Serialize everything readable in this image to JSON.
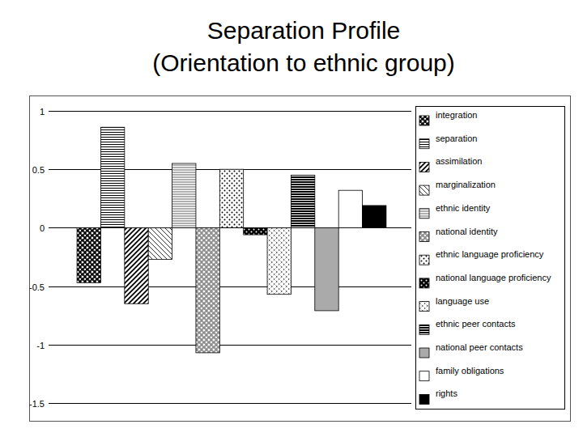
{
  "chart_data": {
    "type": "bar",
    "title": "Separation Profile",
    "subtitle": "(Orientation to ethnic group)",
    "categories": [
      null
    ],
    "series": [
      {
        "name": "integration",
        "color": "#000000",
        "values": [
          -0.47
        ]
      },
      {
        "name": "separation",
        "color": "#ffffff",
        "values": [
          0.86
        ]
      },
      {
        "name": "assimilation",
        "color": "#ffffff",
        "values": [
          -0.65
        ]
      },
      {
        "name": "marginalization",
        "color": "#ffffff",
        "values": [
          -0.27
        ]
      },
      {
        "name": "ethnic identity",
        "color": "#b0b0b0",
        "values": [
          0.55
        ]
      },
      {
        "name": "national identity",
        "color": "#8c8c8c",
        "values": [
          -1.07
        ]
      },
      {
        "name": "ethnic language proficiency",
        "color": "#ffffff",
        "values": [
          0.5
        ]
      },
      {
        "name": "national language proficiency",
        "color": "#000000",
        "values": [
          -0.06
        ]
      },
      {
        "name": "language use",
        "color": "#ffffff",
        "values": [
          -0.57
        ]
      },
      {
        "name": "ethnic peer contacts",
        "color": "#000000",
        "values": [
          0.45
        ]
      },
      {
        "name": "national peer contacts",
        "color": "#aaaaaa",
        "values": [
          -0.71
        ]
      },
      {
        "name": "family obligations",
        "color": "#ffffff",
        "values": [
          0.32
        ]
      },
      {
        "name": "rights",
        "color": "#000000",
        "values": [
          0.19
        ]
      }
    ],
    "ylim": [
      -1.5,
      1
    ],
    "yticks": [
      -1.5,
      -1,
      -0.5,
      0,
      0.5,
      1
    ],
    "grid": true,
    "legend": "right"
  }
}
